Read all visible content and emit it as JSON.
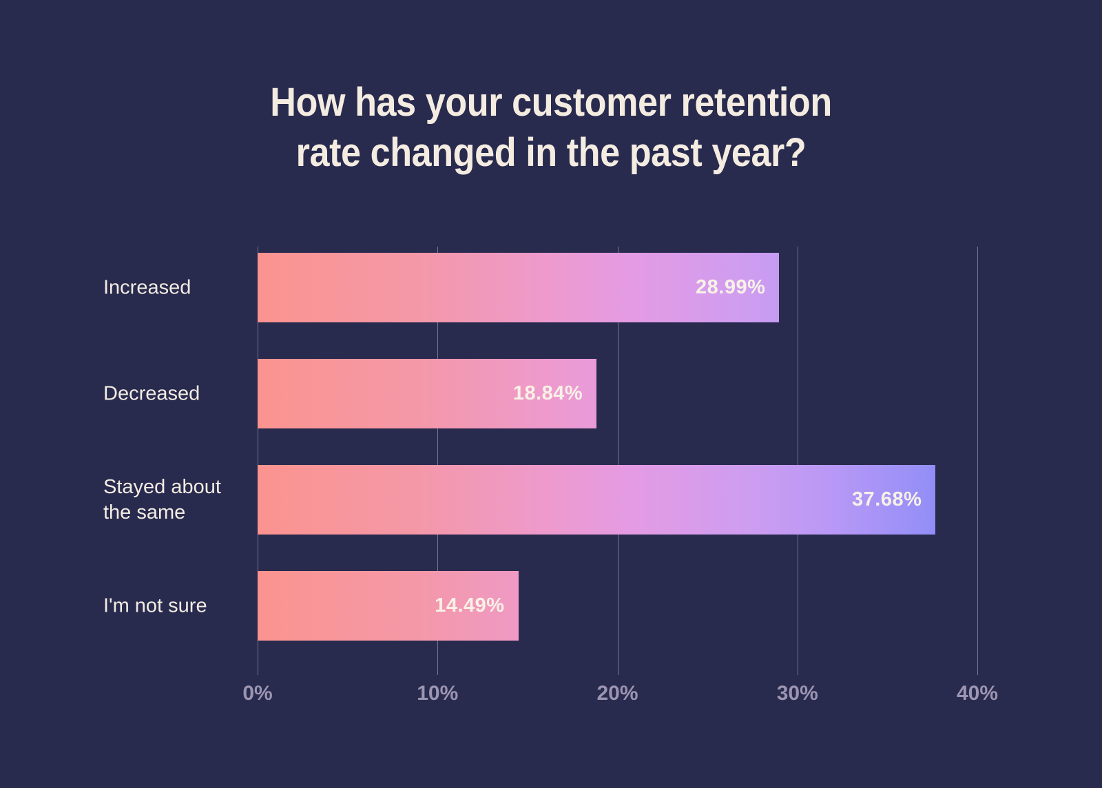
{
  "chart_data": {
    "type": "bar",
    "orientation": "horizontal",
    "title": "How has your customer retention rate changed in the past year?",
    "title_lines": [
      "How has your customer retention",
      "rate changed in the past year?"
    ],
    "categories": [
      "Increased",
      "Decreased",
      "Stayed about the same",
      "I'm not sure"
    ],
    "values": [
      28.99,
      18.84,
      37.68,
      14.49
    ],
    "value_labels": [
      "28.99%",
      "18.84%",
      "37.68%",
      "14.49%"
    ],
    "xlabel": "",
    "ylabel": "",
    "xlim": [
      0,
      40
    ],
    "x_tick_labels": [
      "0%",
      "10%",
      "20%",
      "30%",
      "40%"
    ],
    "x_tick_values": [
      0,
      10,
      20,
      30,
      40
    ],
    "grid": "vertical",
    "legend": "none",
    "colors": {
      "background": "#282A4E",
      "title_text": "#F4ECE1",
      "category_text": "#F3ECE3",
      "value_text": "#F8F1E6",
      "tick_text": "#9C95B1",
      "gridline": "rgba(214,209,228,0.45)",
      "bar_gradient_stops": [
        {
          "color": "#FB948F",
          "pos": 0
        },
        {
          "color": "#F498A8",
          "pos": 22
        },
        {
          "color": "#EE9ACC",
          "pos": 40
        },
        {
          "color": "#E49BE4",
          "pos": 52
        },
        {
          "color": "#CE9DF0",
          "pos": 68
        },
        {
          "color": "#B898F6",
          "pos": 80
        },
        {
          "color": "#9790F7",
          "pos": 92
        },
        {
          "color": "#8489F6",
          "pos": 100
        }
      ]
    }
  }
}
